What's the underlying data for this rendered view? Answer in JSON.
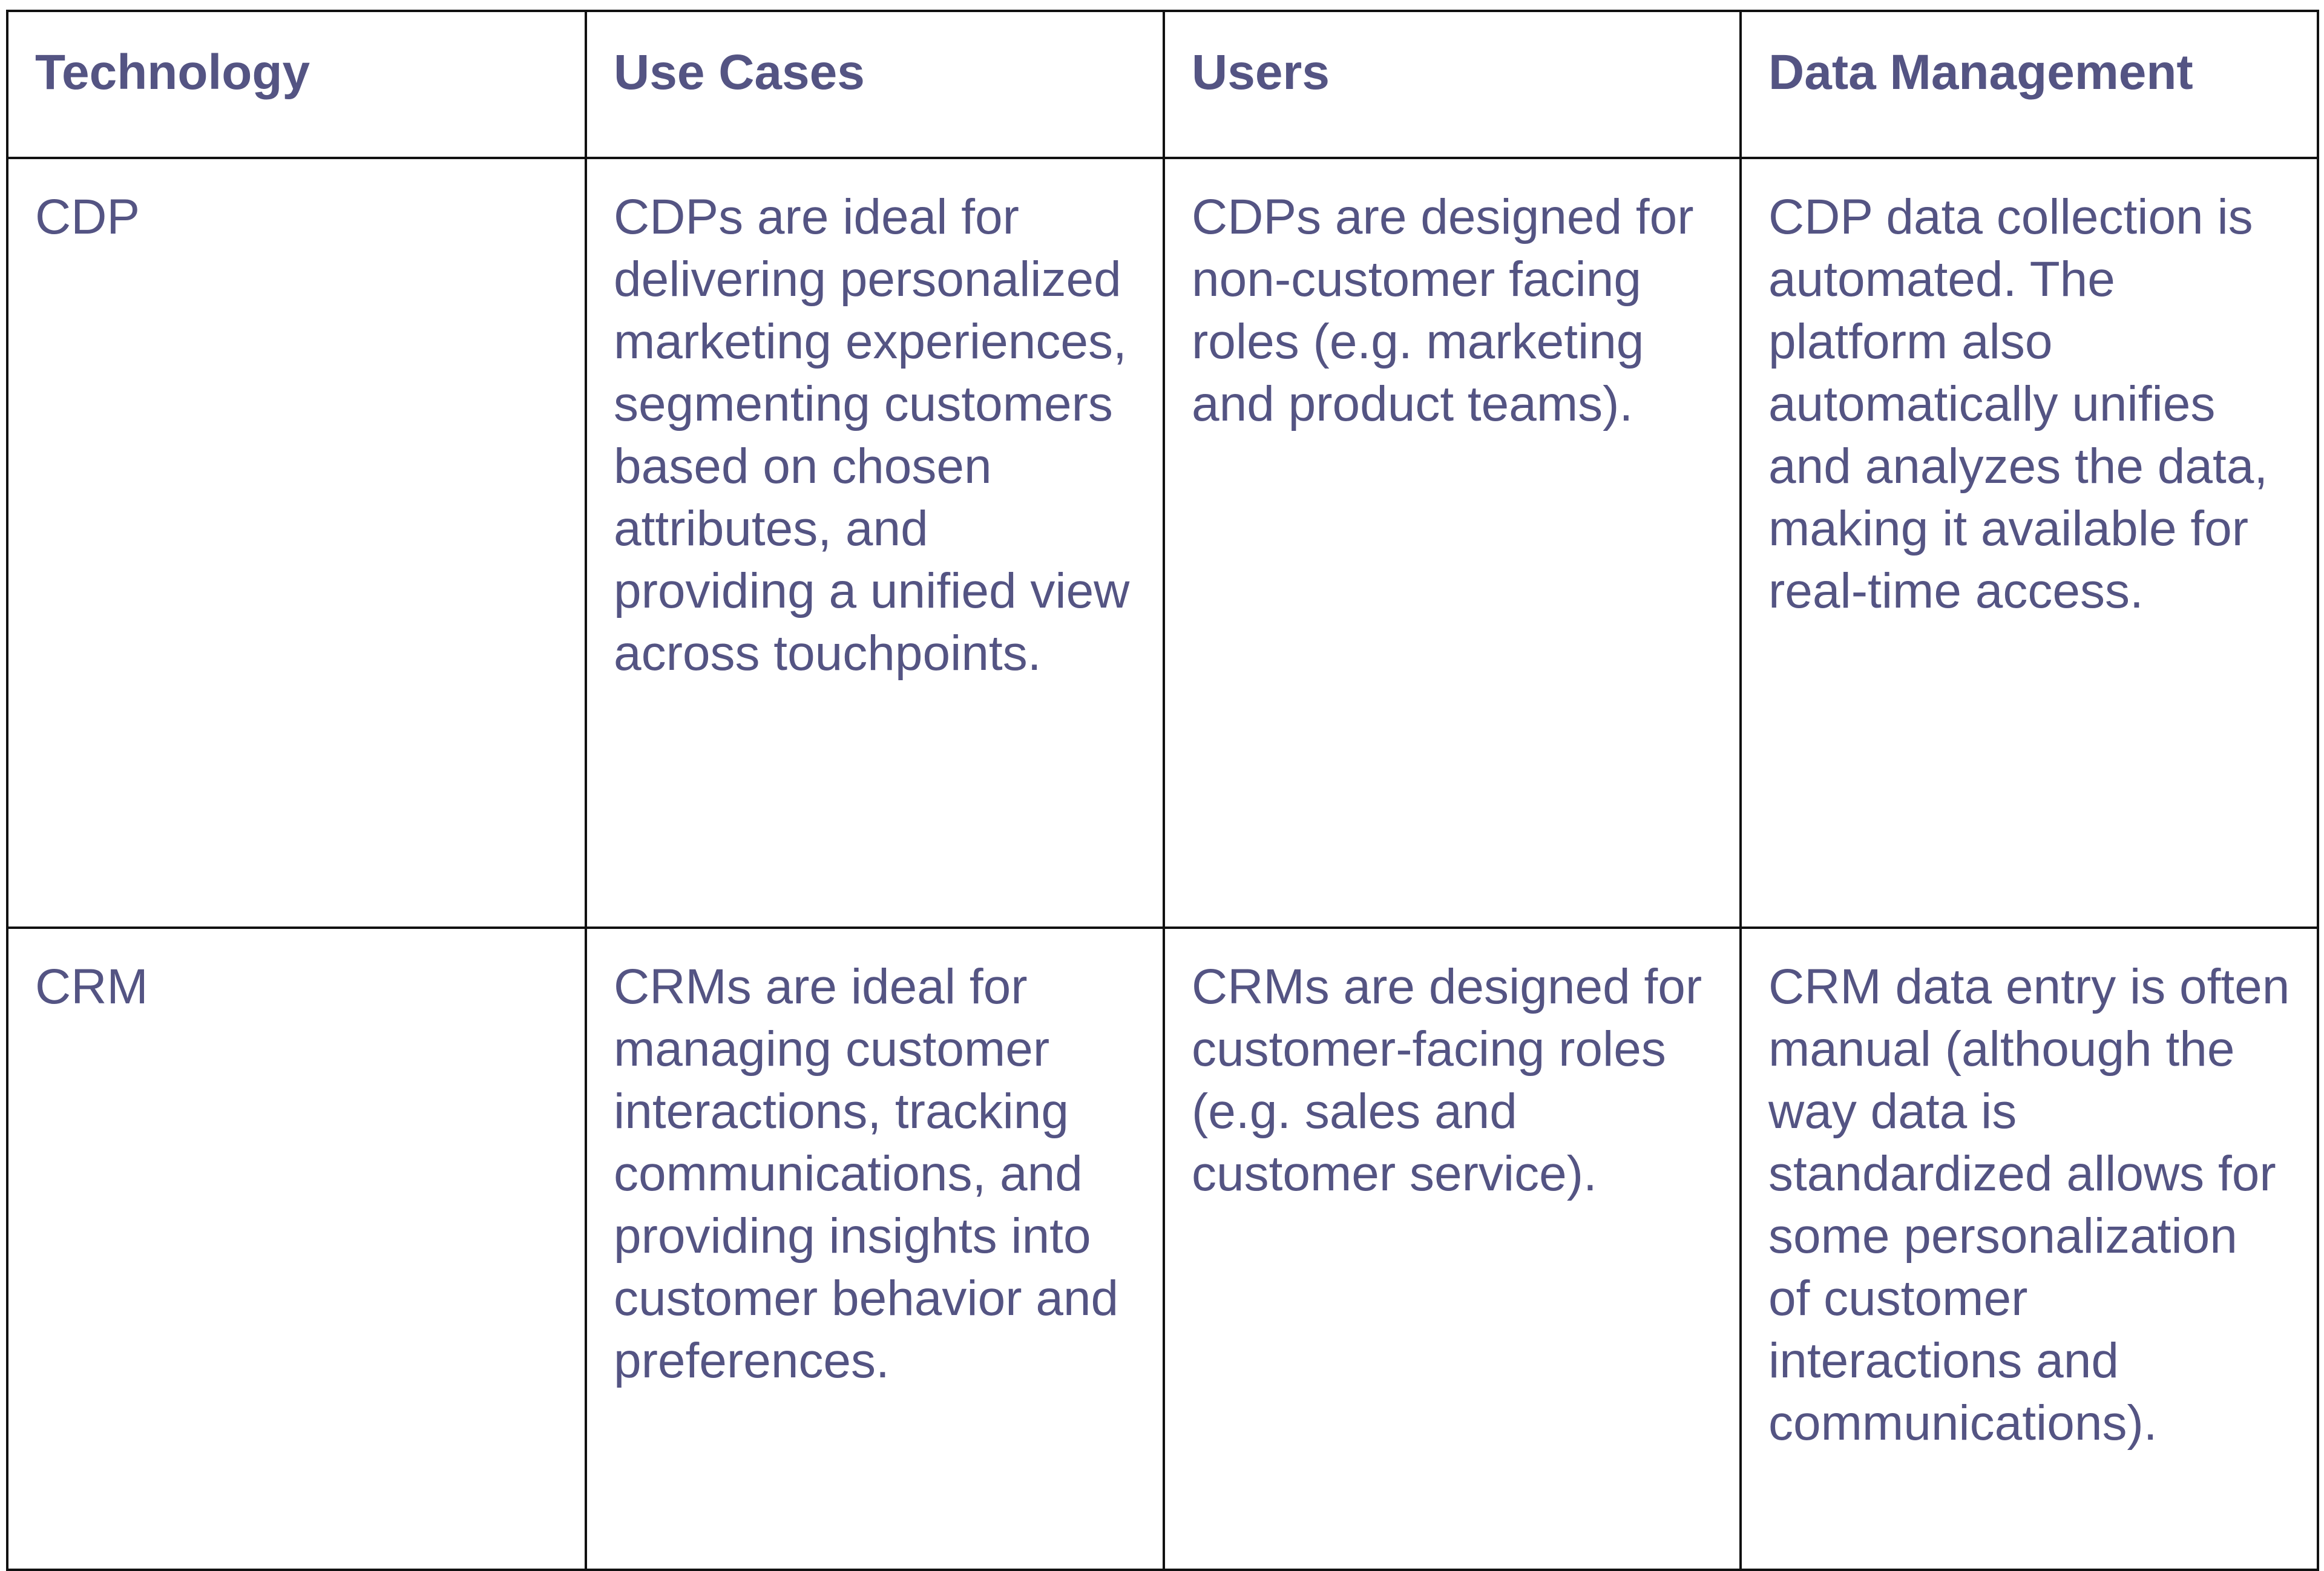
{
  "table": {
    "headers": [
      "Technology",
      "Use Cases",
      "Users",
      "Data Management"
    ],
    "rows": [
      {
        "technology": "CDP",
        "use_cases": "CDPs are ideal for delivering personalized marketing experiences, segmenting customers based on chosen attributes, and providing a unified view across touchpoints.",
        "users": "CDPs are designed for non-customer facing roles (e.g. marketing and product teams).",
        "data_management": "CDP data collection is automated. The platform also automatically unifies and analyzes the data, making it available for real-time access."
      },
      {
        "technology": "CRM",
        "use_cases": "CRMs are ideal for managing customer interactions, tracking communications, and providing insights into customer behavior and preferences.",
        "users": "CRMs are designed for customer-facing roles (e.g. sales and customer service).",
        "data_management": "CRM data entry is often manual (although the way data is standardized allows for some personalization of customer interactions and communications)."
      }
    ]
  },
  "colors": {
    "text": "#545483",
    "border": "#111111",
    "background": "#ffffff"
  }
}
